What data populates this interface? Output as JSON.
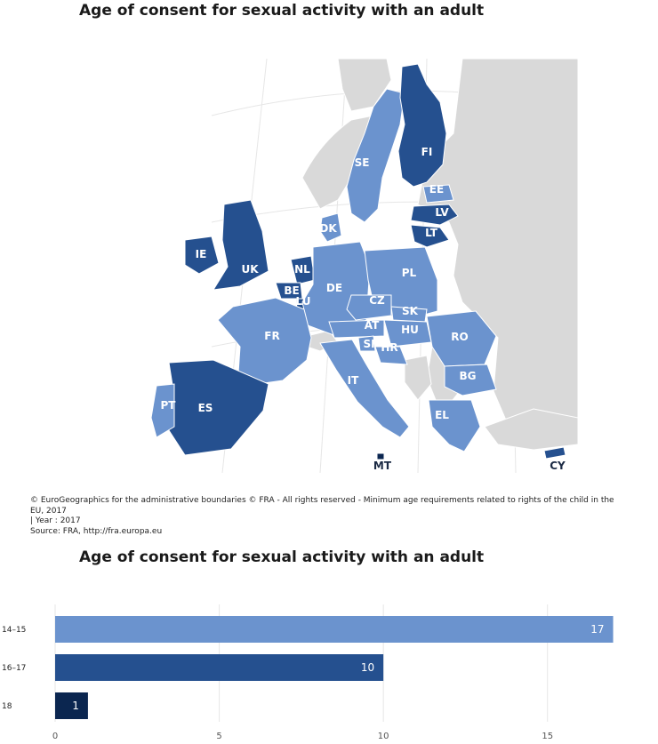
{
  "map": {
    "title": "Age of consent for sexual activity with an adult",
    "legend_colors": {
      "14–15": "#6b93ce",
      "16–17": "#25508f",
      "18": "#0b2650",
      "non_eu": "#d9d9d9"
    },
    "countries": [
      {
        "code": "SE",
        "group": "14–15"
      },
      {
        "code": "FI",
        "group": "16–17"
      },
      {
        "code": "EE",
        "group": "14–15"
      },
      {
        "code": "LV",
        "group": "16–17"
      },
      {
        "code": "LT",
        "group": "16–17"
      },
      {
        "code": "DK",
        "group": "14–15"
      },
      {
        "code": "IE",
        "group": "16–17"
      },
      {
        "code": "UK",
        "group": "16–17"
      },
      {
        "code": "NL",
        "group": "16–17"
      },
      {
        "code": "BE",
        "group": "16–17"
      },
      {
        "code": "LU",
        "group": "16–17"
      },
      {
        "code": "DE",
        "group": "14–15"
      },
      {
        "code": "PL",
        "group": "14–15"
      },
      {
        "code": "CZ",
        "group": "14–15"
      },
      {
        "code": "SK",
        "group": "14–15"
      },
      {
        "code": "AT",
        "group": "14–15"
      },
      {
        "code": "HU",
        "group": "14–15"
      },
      {
        "code": "SI",
        "group": "14–15"
      },
      {
        "code": "HR",
        "group": "14–15"
      },
      {
        "code": "RO",
        "group": "14–15"
      },
      {
        "code": "BG",
        "group": "14–15"
      },
      {
        "code": "FR",
        "group": "14–15"
      },
      {
        "code": "IT",
        "group": "14–15"
      },
      {
        "code": "ES",
        "group": "16–17"
      },
      {
        "code": "PT",
        "group": "14–15"
      },
      {
        "code": "EL",
        "group": "14–15"
      },
      {
        "code": "MT",
        "group": "18"
      },
      {
        "code": "CY",
        "group": "16–17"
      }
    ]
  },
  "credits": {
    "line1": "© EuroGeographics for the administrative boundaries © FRA - All rights reserved - Minimum age requirements related to rights of the child in the EU, 2017",
    "line2": "| Year : 2017",
    "line3": "Source: FRA, http://fra.europa.eu"
  },
  "chart_data": {
    "type": "bar",
    "orientation": "horizontal",
    "title": "Age of consent for sexual activity with an adult",
    "categories": [
      "14–15",
      "16–17",
      "18"
    ],
    "values": [
      17,
      10,
      1
    ],
    "colors": [
      "#6b93ce",
      "#25508f",
      "#0b2650"
    ],
    "xlim": [
      0,
      17.5
    ],
    "xticks": [
      0,
      5,
      10,
      15
    ],
    "grid": true
  }
}
